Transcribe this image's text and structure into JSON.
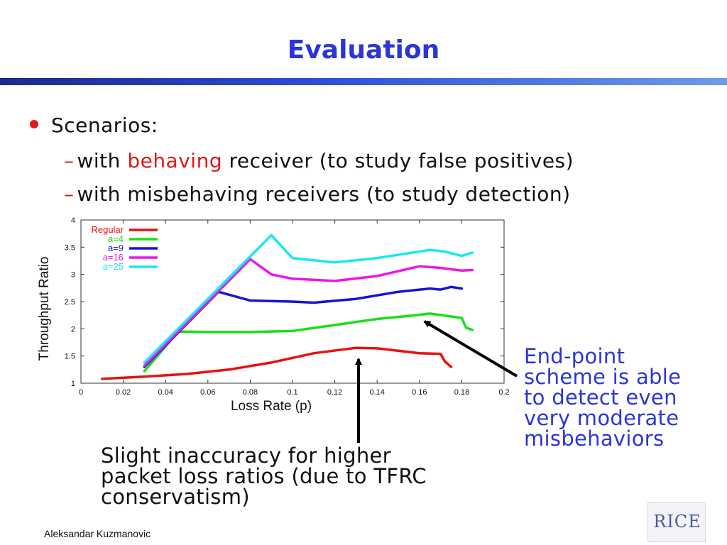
{
  "slide": {
    "title": "Evaluation",
    "bullet": "Scenarios:",
    "sub1": {
      "dash": "–",
      "pre": "with ",
      "highlight": "behaving",
      "post": " receiver (to study false positives)"
    },
    "sub2": {
      "dash": "–",
      "text": "with misbehaving receivers (to study detection)"
    },
    "annotation_right": [
      "End-point",
      "scheme is able",
      "to detect even",
      "very moderate",
      "misbehaviors"
    ],
    "annotation_bottom": [
      "Slight inaccuracy for higher",
      "packet loss ratios (due to TFRC",
      "conservatism)"
    ],
    "author": "Aleksandar Kuzmanovic",
    "logo_text": "RICE",
    "colors": {
      "title": "#2b35d8",
      "accent": "#e01818",
      "annotation": "#2b35d8"
    },
    "icons": {
      "bullet": "red-dot-icon",
      "logo": "rice-university-logo"
    }
  },
  "chart_data": {
    "type": "line",
    "title": "",
    "xlabel": "Loss Rate (p)",
    "ylabel": "Throughput Ratio",
    "xlim": [
      0,
      0.2
    ],
    "ylim": [
      1,
      4
    ],
    "xticks": [
      "0",
      "0.02",
      "0.04",
      "0.06",
      "0.08",
      "0.1",
      "0.12",
      "0.14",
      "0.16",
      "0.18",
      "0.2"
    ],
    "yticks": [
      "1",
      "1.5",
      "2",
      "2.5",
      "3",
      "3.5",
      "4"
    ],
    "legend_position": "top-left",
    "series": [
      {
        "name": "Regular",
        "color": "#e81010",
        "x": [
          0.01,
          0.03,
          0.05,
          0.07,
          0.09,
          0.11,
          0.13,
          0.14,
          0.16,
          0.17,
          0.172,
          0.175
        ],
        "y": [
          1.08,
          1.12,
          1.17,
          1.25,
          1.38,
          1.55,
          1.65,
          1.64,
          1.55,
          1.54,
          1.4,
          1.3
        ]
      },
      {
        "name": "a=4",
        "color": "#18e018",
        "x": [
          0.03,
          0.046,
          0.06,
          0.08,
          0.1,
          0.12,
          0.14,
          0.158,
          0.165,
          0.18,
          0.182,
          0.185
        ],
        "y": [
          1.22,
          1.95,
          1.94,
          1.94,
          1.96,
          2.07,
          2.18,
          2.25,
          2.28,
          2.2,
          2.02,
          1.98
        ]
      },
      {
        "name": "a=9",
        "color": "#1414d8",
        "x": [
          0.03,
          0.065,
          0.08,
          0.1,
          0.11,
          0.13,
          0.15,
          0.165,
          0.17,
          0.175,
          0.18
        ],
        "y": [
          1.3,
          2.68,
          2.52,
          2.5,
          2.48,
          2.55,
          2.68,
          2.74,
          2.72,
          2.77,
          2.74
        ]
      },
      {
        "name": "a=16",
        "color": "#e818e8",
        "x": [
          0.03,
          0.08,
          0.09,
          0.1,
          0.12,
          0.14,
          0.16,
          0.17,
          0.18,
          0.185
        ],
        "y": [
          1.32,
          3.28,
          3.0,
          2.92,
          2.88,
          2.97,
          3.15,
          3.12,
          3.07,
          3.08
        ]
      },
      {
        "name": "a=25",
        "color": "#18e8f0",
        "x": [
          0.03,
          0.09,
          0.1,
          0.12,
          0.14,
          0.165,
          0.172,
          0.18,
          0.185
        ],
        "y": [
          1.38,
          3.72,
          3.3,
          3.22,
          3.3,
          3.45,
          3.42,
          3.34,
          3.4
        ]
      }
    ]
  }
}
